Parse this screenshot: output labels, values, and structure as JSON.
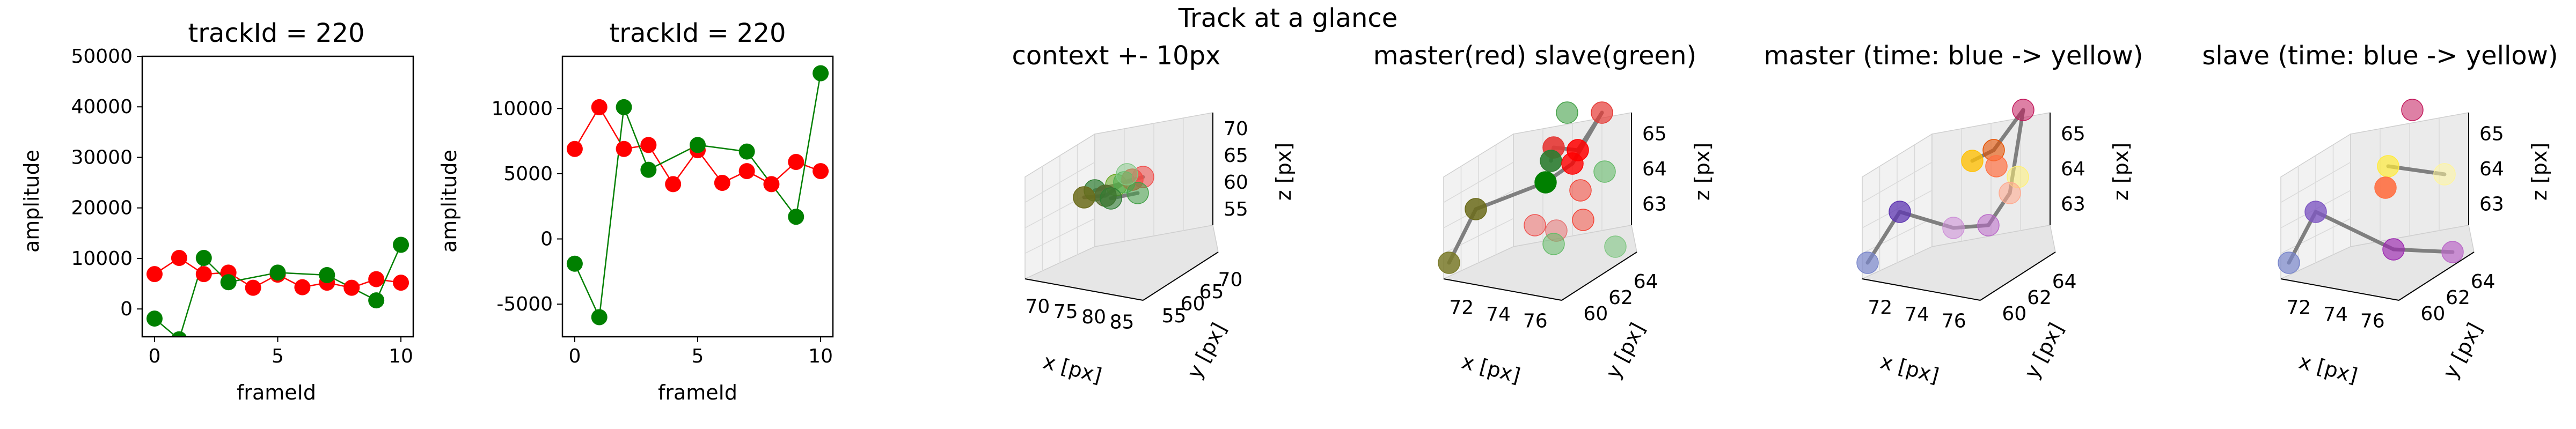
{
  "suptitle": "Track at a glance",
  "chart_data": [
    {
      "type": "scatter",
      "title": "trackId = 220",
      "xlabel": "frameId",
      "ylabel": "amplitude",
      "xlim": [
        -0.5,
        10.5
      ],
      "ylim": [
        -5500,
        50000
      ],
      "xticks": [
        0,
        5,
        10
      ],
      "yticks": [
        0,
        10000,
        20000,
        30000,
        40000,
        50000
      ],
      "series": [
        {
          "color": "#ff0000",
          "x": [
            0,
            1,
            2,
            3,
            4,
            5,
            6,
            7,
            8,
            9,
            10
          ],
          "y": [
            6900,
            10100,
            6900,
            7200,
            4200,
            6800,
            4300,
            5200,
            4200,
            5900,
            5200
          ]
        },
        {
          "color": "#008000",
          "x": [
            0,
            1,
            2,
            3,
            5,
            7,
            9,
            10
          ],
          "y": [
            -1900,
            -6000,
            10100,
            5300,
            7200,
            6700,
            1700,
            12700
          ]
        }
      ]
    },
    {
      "type": "scatter",
      "title": "trackId = 220",
      "xlabel": "frameId",
      "ylabel": "amplitude",
      "xlim": [
        -0.5,
        10.5
      ],
      "ylim": [
        -7500,
        14000
      ],
      "xticks": [
        0,
        5,
        10
      ],
      "yticks": [
        -5000,
        0,
        5000,
        10000
      ],
      "series": [
        {
          "color": "#ff0000",
          "x": [
            0,
            1,
            2,
            3,
            4,
            5,
            6,
            7,
            8,
            9,
            10
          ],
          "y": [
            6900,
            10100,
            6900,
            7200,
            4200,
            6800,
            4300,
            5200,
            4200,
            5900,
            5200
          ]
        },
        {
          "color": "#008000",
          "x": [
            0,
            1,
            2,
            3,
            5,
            7,
            9,
            10
          ],
          "y": [
            -1900,
            -6000,
            10100,
            5300,
            7200,
            6700,
            1700,
            12700
          ]
        }
      ]
    },
    {
      "type": "scatter3d",
      "title": "context +- 10px",
      "xlabel": "x [px]",
      "ylabel": "y [px]",
      "zlabel": "z [px]",
      "xticks": [
        70,
        75,
        80,
        85
      ],
      "yticks": [
        55,
        60,
        65,
        70
      ],
      "zticks": [
        55,
        60,
        65,
        70
      ]
    },
    {
      "type": "scatter3d",
      "title": "master(red) slave(green)",
      "xlabel": "x [px]",
      "ylabel": "y [px]",
      "zlabel": "z [px]",
      "xticks": [
        72,
        74,
        76
      ],
      "yticks": [
        60,
        62,
        64
      ],
      "zticks": [
        63,
        64,
        65
      ]
    },
    {
      "type": "scatter3d",
      "title": "master (time: blue -> yellow)",
      "xlabel": "x [px]",
      "ylabel": "y [px]",
      "zlabel": "z [px]",
      "xticks": [
        72,
        74,
        76
      ],
      "yticks": [
        60,
        62,
        64
      ],
      "zticks": [
        63,
        64,
        65
      ]
    },
    {
      "type": "scatter3d",
      "title": "slave (time: blue -> yellow)",
      "xlabel": "x [px]",
      "ylabel": "y [px]",
      "zlabel": "z [px]",
      "xticks": [
        72,
        74,
        76
      ],
      "yticks": [
        60,
        62,
        64
      ],
      "zticks": [
        63,
        64,
        65
      ]
    }
  ]
}
